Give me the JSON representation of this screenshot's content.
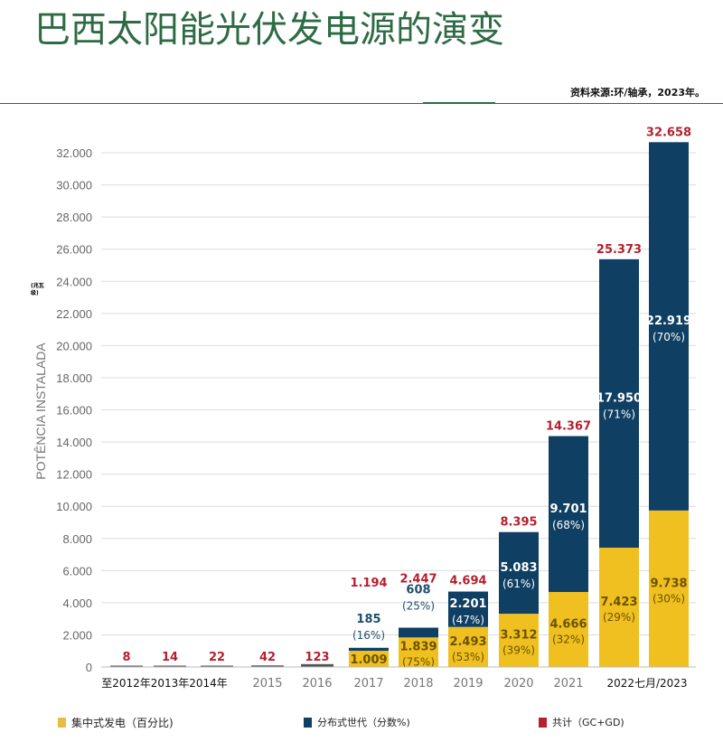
{
  "header": {
    "title": "巴西太阳能光伏发电源的演变",
    "source": "资料来源:环/轴承，2023年。",
    "unit_note": "(兆瓦级)"
  },
  "legend": [
    {
      "label": "集中式发电（百分比)",
      "color": "#f0c020"
    },
    {
      "label": "分布式世代（分数%)",
      "color": "#0f3f63"
    },
    {
      "label": "共计（GC+GD)",
      "color": "#b5202e"
    }
  ],
  "chart_data": {
    "type": "bar",
    "stacked": true,
    "ylabel": "POTÊNCIA INSTALADA",
    "ylim": [
      0,
      32000
    ],
    "yticks": [
      "0",
      "2.000",
      "4.000",
      "6.000",
      "8.000",
      "10.000",
      "12.000",
      "14.000",
      "16.000",
      "18.000",
      "20.000",
      "22.000",
      "24.000",
      "26.000",
      "28.000",
      "30.000",
      "32.000"
    ],
    "grid": true,
    "categories": [
      "2012",
      "2013",
      "2014",
      "2015",
      "2016",
      "2017",
      "2018",
      "2019",
      "2020",
      "2021",
      "2022",
      "2023"
    ],
    "xtick_labels": [
      {
        "text": "至2012年2013年2014年"
      },
      {
        "text": "2015"
      },
      {
        "text": "2016"
      },
      {
        "text": "2017"
      },
      {
        "text": "2018"
      },
      {
        "text": "2019"
      },
      {
        "text": "2020"
      },
      {
        "text": "2021"
      },
      {
        "text": "2022七月/2023"
      }
    ],
    "series": [
      {
        "name": "集中式发电（百分比)",
        "color": "#f0c020",
        "values": [
          null,
          null,
          null,
          null,
          null,
          1009,
          1839,
          2493,
          3312,
          4666,
          7423,
          9738
        ],
        "labels": [
          null,
          null,
          null,
          null,
          null,
          "1.009",
          "1.839",
          "2.493",
          "3.312",
          "4.666",
          "7.423",
          "9.738"
        ],
        "pct": [
          null,
          null,
          null,
          null,
          null,
          null,
          "(75%)",
          "(53%)",
          "(39%)",
          "(32%)",
          "(29%)",
          "(30%)"
        ]
      },
      {
        "name": "分布式世代（分数%)",
        "color": "#0f3f63",
        "values": [
          null,
          null,
          null,
          null,
          null,
          185,
          608,
          2201,
          5083,
          9701,
          17950,
          22919
        ],
        "labels": [
          null,
          null,
          null,
          null,
          null,
          "185",
          "608",
          "2.201",
          "5.083",
          "9.701",
          "17.950",
          "22.919"
        ],
        "pct": [
          null,
          null,
          null,
          null,
          null,
          "(16%)",
          "(25%)",
          "(47%)",
          "(61%)",
          "(68%)",
          "(71%)",
          "(70%)"
        ]
      }
    ],
    "totals": {
      "name": "共计（GC+GD)",
      "color": "#b5202e",
      "values": [
        8,
        14,
        22,
        42,
        123,
        1194,
        2447,
        4694,
        8395,
        14367,
        25373,
        32658
      ],
      "labels": [
        "8",
        "14",
        "22",
        "42",
        "123",
        "1.194",
        "2.447",
        "4.694",
        "8.395",
        "14.367",
        "25.373",
        "32.658"
      ]
    }
  }
}
